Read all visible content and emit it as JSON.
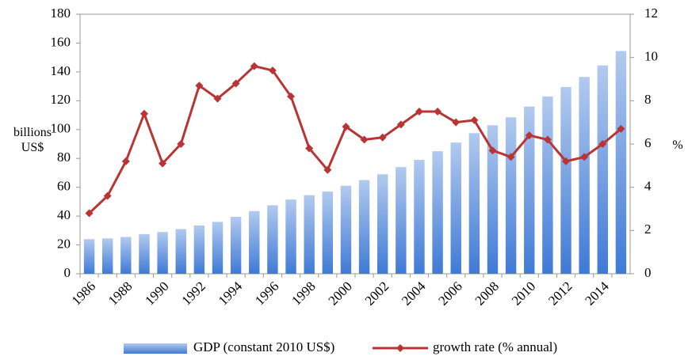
{
  "chart_data": {
    "type": "bar_line",
    "y_label": "billions US$",
    "y2_label": "%",
    "categories": [
      "1986",
      null,
      "1988",
      null,
      "1990",
      null,
      "1992",
      null,
      "1994",
      null,
      "1996",
      null,
      "1998",
      null,
      "2000",
      null,
      "2002",
      null,
      "2004",
      null,
      "2006",
      null,
      "2008",
      null,
      "2010",
      null,
      "2012",
      null,
      "2014",
      null
    ],
    "series": [
      {
        "name": "GDP (constant 2010 US$)",
        "type": "bar",
        "axis": "y",
        "color": "#3f7ad6",
        "values": [
          24,
          24.5,
          25.5,
          27.5,
          29,
          31,
          33.5,
          36,
          39.5,
          43.5,
          47.5,
          51.5,
          54.5,
          57,
          61,
          65,
          69,
          74,
          79,
          85,
          91,
          97.5,
          103,
          108.5,
          116,
          123,
          129.5,
          136.5,
          144.5,
          154.5
        ]
      },
      {
        "name": "growth rate (% annual)",
        "type": "line",
        "axis": "y2",
        "color": "#b93434",
        "values": [
          2.8,
          3.6,
          5.2,
          7.4,
          5.1,
          6.0,
          8.7,
          8.1,
          8.8,
          9.6,
          9.4,
          8.2,
          5.8,
          4.8,
          6.8,
          6.2,
          6.3,
          6.9,
          7.5,
          7.5,
          7.0,
          7.1,
          5.7,
          5.4,
          6.4,
          6.2,
          5.2,
          5.4,
          6.0,
          6.7
        ]
      }
    ],
    "ylim": [
      0,
      180
    ],
    "yticks": [
      0,
      20,
      40,
      60,
      80,
      100,
      120,
      140,
      160,
      180
    ],
    "y2lim": [
      0,
      12
    ],
    "y2ticks": [
      0,
      2,
      4,
      6,
      8,
      10,
      12
    ],
    "legend": "bottom"
  }
}
